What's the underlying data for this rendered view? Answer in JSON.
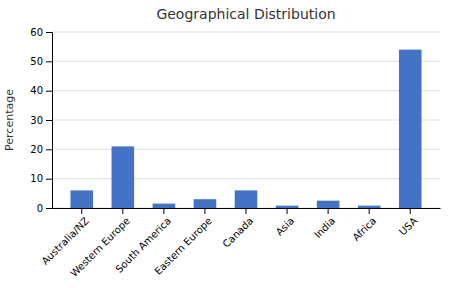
{
  "chart_data": {
    "type": "bar",
    "title": "Geographical Distribution",
    "categories": [
      "Australia/NZ",
      "Western Europe",
      "South America",
      "Eastern Europe",
      "Canada",
      "Asia",
      "India",
      "Africa",
      "USA"
    ],
    "values": [
      6,
      21,
      1.5,
      3,
      6,
      0.8,
      2.5,
      0.8,
      54
    ],
    "color": "#4472C4",
    "ylabel": "Percentage",
    "ylim": [
      0,
      60
    ],
    "yticks": [
      0,
      10,
      20,
      30,
      40,
      50,
      60
    ],
    "grid": true
  }
}
